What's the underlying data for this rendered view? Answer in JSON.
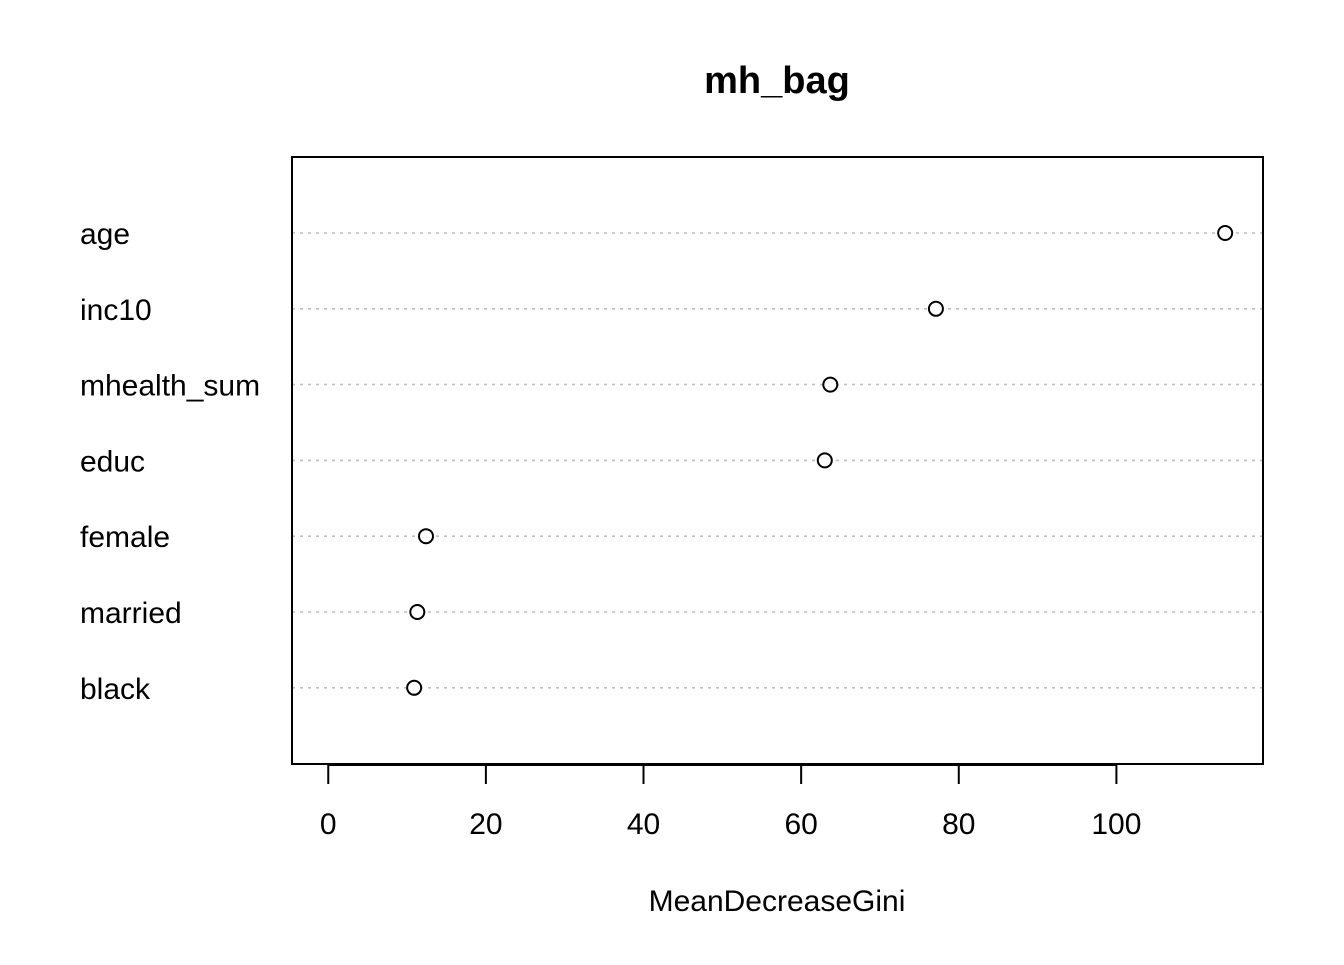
{
  "chart_data": {
    "type": "scatter",
    "subtype": "dotchart",
    "title": "mh_bag",
    "xlabel": "MeanDecreaseGini",
    "ylabel": "",
    "categories": [
      "age",
      "inc10",
      "mhealth_sum",
      "educ",
      "female",
      "married",
      "black"
    ],
    "values": [
      113.8,
      77.1,
      63.7,
      63.0,
      12.4,
      11.3,
      10.9
    ],
    "xlim": [
      -4.6,
      118.6
    ],
    "xticks": [
      0,
      20,
      40,
      60,
      80,
      100
    ],
    "xtick_labels": [
      "0",
      "20",
      "40",
      "60",
      "80",
      "100"
    ],
    "grid": "horizontal dotted guide line per category",
    "marker": "open circle",
    "colors": {
      "points": "#000000",
      "guides": "#bebebe",
      "frame": "#000000",
      "background": "#ffffff"
    }
  }
}
